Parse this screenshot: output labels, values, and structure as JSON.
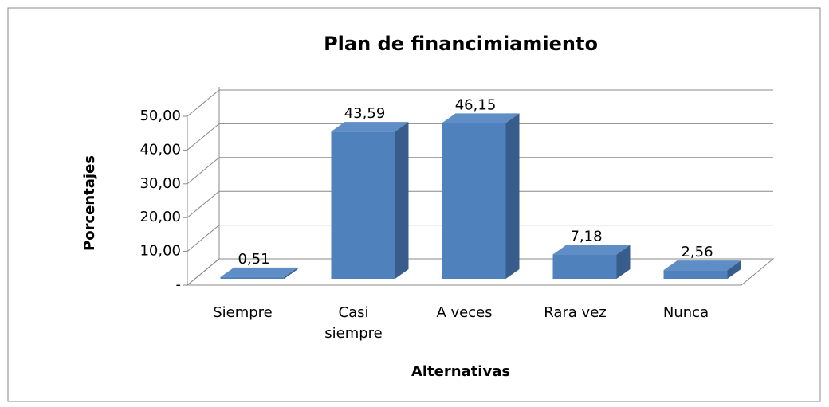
{
  "chart_data": {
    "type": "bar3d",
    "title": "Plan de financimiamiento",
    "x_label": "Alternativas",
    "y_label": "Porcentajes",
    "categories": [
      "Siempre",
      "Casi siempre",
      "A veces",
      "Rara vez",
      "Nunca"
    ],
    "values": [
      0.51,
      43.59,
      46.15,
      7.18,
      2.56
    ],
    "value_labels": [
      "0,51",
      "43,59",
      "46,15",
      "7,18",
      "2,56"
    ],
    "color": "#4f81bd",
    "ylim": [
      0,
      50
    ],
    "yticks": [
      {
        "value": 0,
        "label": "-"
      },
      {
        "value": 10,
        "label": "10,00"
      },
      {
        "value": 20,
        "label": "20,00"
      },
      {
        "value": 30,
        "label": "30,00"
      },
      {
        "value": 40,
        "label": "40,00"
      },
      {
        "value": 50,
        "label": "50,00"
      }
    ],
    "grid": true
  }
}
